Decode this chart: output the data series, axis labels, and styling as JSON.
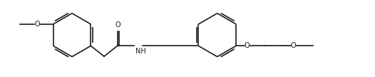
{
  "bg": "#ffffff",
  "lc": "#1a1a1a",
  "lw": 1.2,
  "fs": 7.0,
  "figsize": [
    5.26,
    1.08
  ],
  "dpi": 100,
  "xlim": [
    -0.3,
    10.0
  ],
  "ylim": [
    -0.1,
    2.1
  ]
}
